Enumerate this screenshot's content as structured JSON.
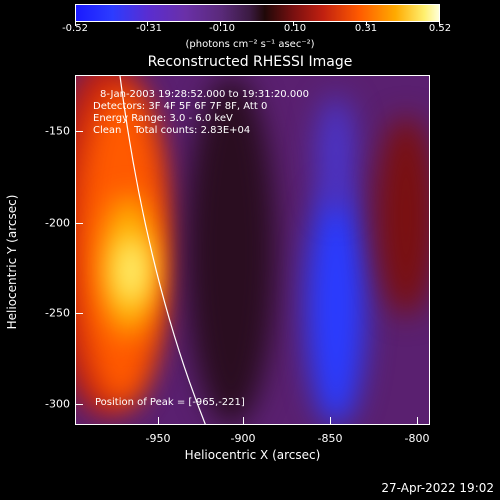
{
  "colorbar": {
    "tick_labels": [
      "-0.52",
      "-0.31",
      "-0.10",
      "0.10",
      "0.31",
      "0.52"
    ],
    "unit_label": "(photons cm⁻² s⁻¹ asec⁻²)"
  },
  "title": "Reconstructed RHESSI Image",
  "info_lines": [
    "8-Jan-2003 19:28:52.000 to 19:31:20.000",
    "Detectors: 3F 4F 5F 6F 7F 8F, Att 0",
    "Energy Range: 3.0 - 6.0 keV",
    "Clean    Total counts: 2.83E+04"
  ],
  "peak_label": "Position of Peak = [-965,-221]",
  "axes": {
    "ylabel": "Heliocentric Y (arcsec)",
    "xlabel": "Heliocentric X (arcsec)",
    "y_ticks": [
      "-150",
      "-200",
      "-250",
      "-300"
    ],
    "x_ticks": [
      "-950",
      "-900",
      "-850",
      "-800"
    ]
  },
  "timestamp": "27-Apr-2022 19:02",
  "colors": {
    "background": "#000000",
    "hot": "#ffe060",
    "cool": "#2a3cff",
    "mid": "#5a2070"
  }
}
